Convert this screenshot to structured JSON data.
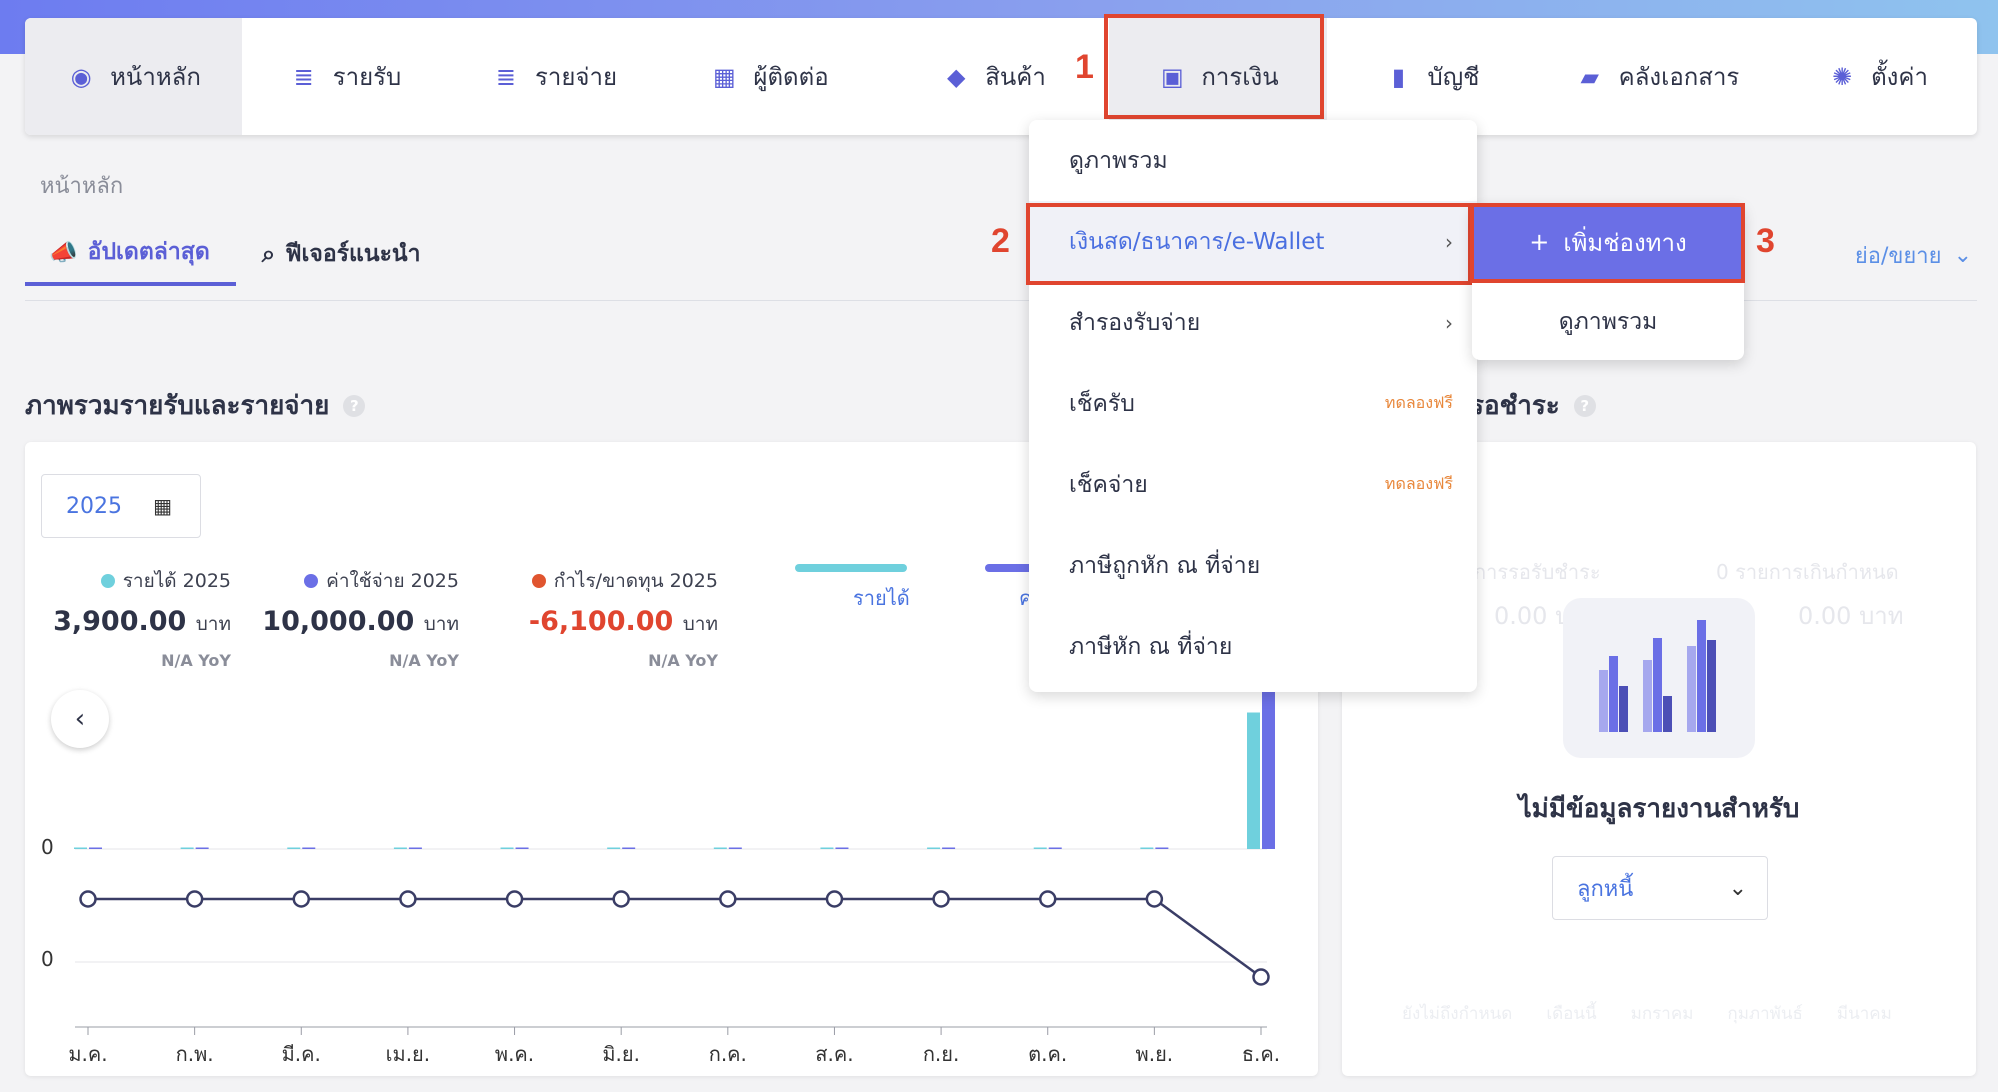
{
  "nav": {
    "items": [
      {
        "label": "หน้าหลัก",
        "icon": "dashboard-icon"
      },
      {
        "label": "รายรับ",
        "icon": "income-icon"
      },
      {
        "label": "รายจ่าย",
        "icon": "expense-icon"
      },
      {
        "label": "ผู้ติดต่อ",
        "icon": "contacts-icon"
      },
      {
        "label": "สินค้า",
        "icon": "box-icon"
      },
      {
        "label": "การเงิน",
        "icon": "money-icon"
      },
      {
        "label": "บัญชี",
        "icon": "ledger-icon"
      },
      {
        "label": "คลังเอกสาร",
        "icon": "folder-icon"
      },
      {
        "label": "ตั้งค่า",
        "icon": "gear-icon"
      }
    ]
  },
  "steps": [
    "1",
    "2",
    "3"
  ],
  "breadcrumb": "หน้าหลัก",
  "subtabs": {
    "latest": "อัปเดตล่าสุด",
    "features": "ฟีเจอร์แนะนำ"
  },
  "collapse_label": "ย่อ/ขยาย",
  "overview": {
    "title": "ภาพรวมรายรับและรายจ่าย",
    "year": "2025",
    "stats": [
      {
        "label": "รายได้ 2025",
        "value": "3,900.00",
        "unit": "บาท",
        "yoy": "N/A YoY",
        "color": "#6fd0dd"
      },
      {
        "label": "ค่าใช้จ่าย 2025",
        "value": "10,000.00",
        "unit": "บาท",
        "yoy": "N/A YoY",
        "color": "#6b6fe6"
      },
      {
        "label": "กำไร/ขาดทุน 2025",
        "value": "-6,100.00",
        "unit": "บาท",
        "yoy": "N/A YoY",
        "color": "#e0552f"
      }
    ],
    "legend": {
      "income": "รายได้",
      "expense_partial": "ค"
    }
  },
  "chart_data": {
    "type": "bar",
    "categories": [
      "ม.ค.",
      "ก.พ.",
      "มี.ค.",
      "เม.ย.",
      "พ.ค.",
      "มิ.ย.",
      "ก.ค.",
      "ส.ค.",
      "ก.ย.",
      "ต.ค.",
      "พ.ย.",
      "ธ.ค."
    ],
    "series": [
      {
        "name": "รายได้",
        "values": [
          0,
          0,
          0,
          0,
          0,
          0,
          0,
          0,
          0,
          0,
          0,
          3900
        ]
      },
      {
        "name": "ค่าใช้จ่าย",
        "values": [
          0,
          0,
          0,
          0,
          0,
          0,
          0,
          0,
          0,
          0,
          0,
          10000
        ]
      },
      {
        "name": "",
        "values": [
          0,
          0,
          0,
          0,
          0,
          0,
          0,
          0,
          0,
          0,
          0,
          -6100
        ]
      }
    ],
    "y_tick_top": "0",
    "y_tick_bottom": "0"
  },
  "dropdown": {
    "items": [
      {
        "label": "ดูภาพรวม",
        "tag": "",
        "arrow": false
      },
      {
        "label": "เงินสด/ธนาคาร/e-Wallet",
        "tag": "",
        "arrow": true
      },
      {
        "label": "สำรองรับจ่าย",
        "tag": "",
        "arrow": true
      },
      {
        "label": "เช็ครับ",
        "tag": "ทดลองฟรี",
        "arrow": false
      },
      {
        "label": "เช็คจ่าย",
        "tag": "ทดลองฟรี",
        "arrow": false
      },
      {
        "label": "ภาษีถูกหัก ณ ที่จ่าย",
        "tag": "",
        "arrow": false
      },
      {
        "label": "ภาษีหัก ณ ที่จ่าย",
        "tag": "",
        "arrow": false
      }
    ]
  },
  "submenu": {
    "add_label": "เพิ่มช่องทาง",
    "overview_label": "ดูภาพรวม"
  },
  "right_panel": {
    "title_partial": "รอชำระ",
    "faded_left_label": "การรอรับชำระ",
    "faded_right_label": "0 รายการเกินกำหนด",
    "faded_left_value": "0.00 บาท",
    "faded_right_value": "0.00 บาท",
    "empty_text": "ไม่มีข้อมูลรายงานสำหรับ",
    "select_value": "ลูกหนี้",
    "faded_footer": [
      "ยังไม่ถึงกำหนด",
      "เดือนนี้",
      "มกราคม",
      "กุมภาพันธ์",
      "มีนาคม"
    ]
  },
  "colors": {
    "accent": "#5b5fd6",
    "highlight": "#e0452f",
    "income": "#6fd0dd",
    "expense": "#6b6fe6"
  }
}
